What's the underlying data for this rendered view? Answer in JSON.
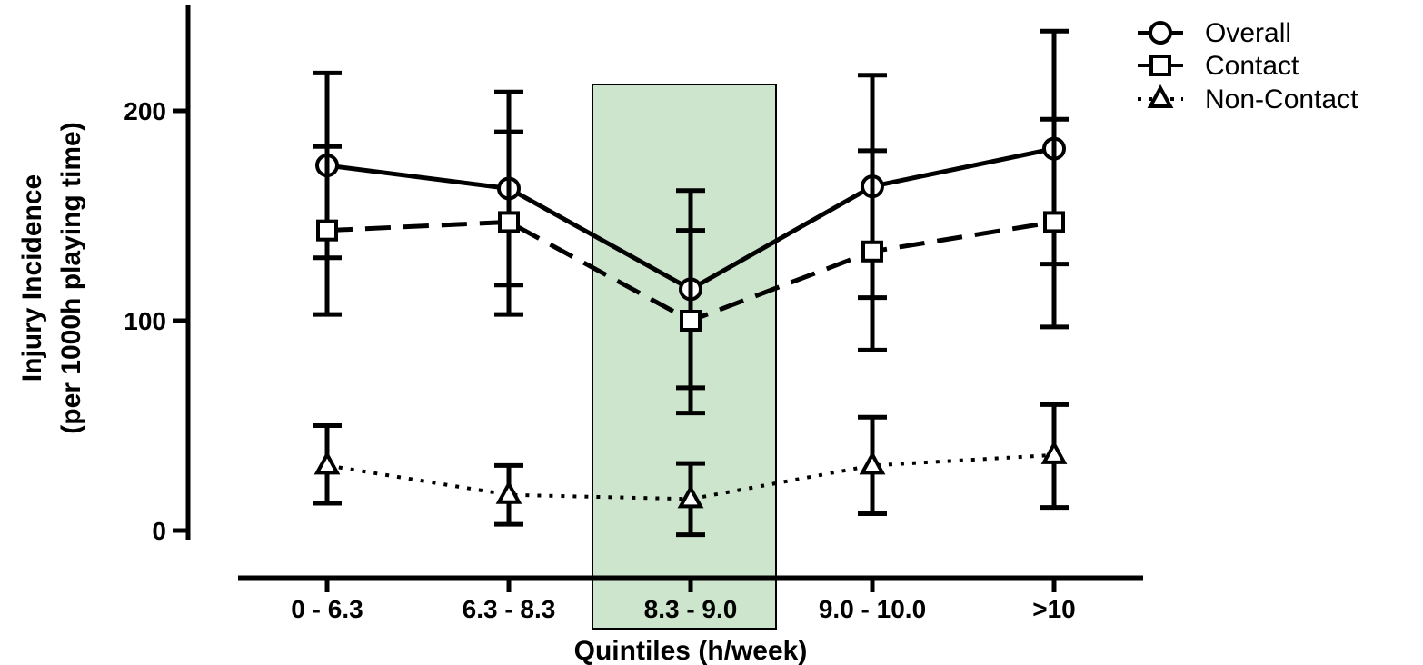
{
  "chart_data": {
    "type": "line",
    "title": "",
    "xlabel": "Quintiles (h/week)",
    "ylabel_line1": "Injury Incidence",
    "ylabel_line2": "(per 1000h playing time)",
    "ylim": [
      0,
      250
    ],
    "yticks": [
      0,
      100,
      200
    ],
    "ytick_labels": [
      "0",
      "100",
      "200"
    ],
    "categories": [
      "0 - 6.3",
      "6.3 - 8.3",
      "8.3 - 9.0",
      "9.0 - 10.0",
      ">10"
    ],
    "highlight_category_index": 2,
    "highlight_color": "#cce5cc",
    "legend_position": "top-right",
    "grid": false,
    "series": [
      {
        "name": "Overall",
        "marker": "circle",
        "line_style": "solid",
        "values": [
          174,
          163,
          115,
          164,
          182
        ],
        "err_low": [
          103,
          103,
          56,
          86,
          97
        ],
        "err_high": [
          218,
          209,
          162,
          217,
          238
        ]
      },
      {
        "name": "Contact",
        "marker": "square",
        "line_style": "dashed",
        "values": [
          143,
          147,
          100,
          133,
          147
        ],
        "err_low": [
          130,
          117,
          68,
          111,
          127
        ],
        "err_high": [
          183,
          190,
          143,
          181,
          196
        ]
      },
      {
        "name": "Non-Contact",
        "marker": "triangle",
        "line_style": "dotted",
        "values": [
          31,
          17,
          15,
          31,
          36
        ],
        "err_low": [
          13,
          3,
          -2,
          8,
          11
        ],
        "err_high": [
          50,
          31,
          32,
          54,
          60
        ]
      }
    ]
  }
}
